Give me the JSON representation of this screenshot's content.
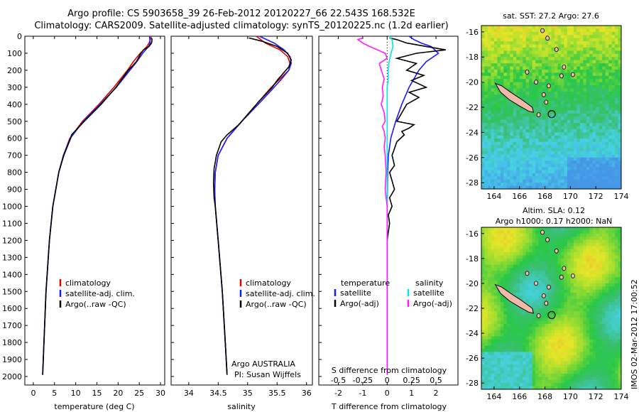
{
  "header": {
    "title_line1": "Argo profile: CS 5903658_39 26-Feb-2012 20120227_66 22.543S 168.532E",
    "title_line2": "Climatology: CARS2009. Satellite-adjusted climatology: synTS_20120225.nc (1.2d earlier)"
  },
  "footer_stamp": "IMOS 02-Mar-2012 17:00:52",
  "chart_data": [
    {
      "type": "line",
      "xlabel": "temperature (deg C)",
      "xlim": [
        -2,
        31
      ],
      "xticks": [
        "0",
        "5",
        "10",
        "15",
        "20",
        "25",
        "30"
      ],
      "ylim": [
        0,
        2050
      ],
      "yticks": [
        "0",
        "100",
        "200",
        "300",
        "400",
        "500",
        "600",
        "700",
        "800",
        "900",
        "1000",
        "1100",
        "1200",
        "1300",
        "1400",
        "1500",
        "1600",
        "1700",
        "1800",
        "1900",
        "2000"
      ],
      "legend": [
        {
          "label": "climatology",
          "color": "#e00000"
        },
        {
          "label": "satellite-adj. clim.",
          "color": "#1a1aff"
        },
        {
          "label": "Argo(..raw -QC)",
          "color": "#000000"
        }
      ],
      "series": [
        {
          "name": "climatology",
          "color": "#e00000",
          "depth": [
            0,
            20,
            40,
            60,
            100,
            150,
            200,
            300,
            400,
            500,
            600,
            700,
            800,
            1000,
            1200,
            1500,
            1800,
            1990
          ],
          "values": [
            27.8,
            27.6,
            27.3,
            26.8,
            25.2,
            23.6,
            22.2,
            19.0,
            15.5,
            11.6,
            8.6,
            7.1,
            6.0,
            4.6,
            3.8,
            3.0,
            2.5,
            2.2
          ]
        },
        {
          "name": "satellite-adj. clim.",
          "color": "#1a1aff",
          "depth": [
            0,
            20,
            40,
            60,
            100,
            150,
            200,
            300,
            400,
            500,
            600,
            700,
            800,
            1000,
            1200,
            1500,
            1800,
            1990
          ],
          "values": [
            27.4,
            27.5,
            27.6,
            27.2,
            25.8,
            24.4,
            22.8,
            19.6,
            15.8,
            11.8,
            8.7,
            7.1,
            6.0,
            4.6,
            3.8,
            3.0,
            2.5,
            2.2
          ]
        },
        {
          "name": "Argo",
          "color": "#000000",
          "depth": [
            10,
            20,
            40,
            60,
            80,
            100,
            150,
            200,
            300,
            400,
            500,
            580,
            600,
            700,
            800,
            1000,
            1200,
            1500,
            1800,
            1990
          ],
          "values": [
            27.9,
            28.0,
            27.9,
            27.3,
            26.0,
            25.4,
            24.3,
            22.4,
            19.5,
            16.0,
            12.0,
            9.0,
            8.8,
            7.2,
            6.0,
            4.6,
            3.8,
            3.0,
            2.5,
            2.2
          ]
        }
      ]
    },
    {
      "type": "line",
      "xlabel": "salinity",
      "xlim": [
        33.7,
        36.1
      ],
      "xticks": [
        "34",
        "34.5",
        "35",
        "35.5",
        "36"
      ],
      "ylim": [
        0,
        2050
      ],
      "legend": [
        {
          "label": "climatology",
          "color": "#e00000"
        },
        {
          "label": "satellite-adj. clim.",
          "color": "#1a1aff"
        },
        {
          "label": "Argo(..raw -QC)",
          "color": "#000000"
        }
      ],
      "annotation_line1": "Argo AUSTRALIA",
      "annotation_line2": "PI: Susan Wijffels",
      "series": [
        {
          "name": "climatology",
          "color": "#e00000",
          "depth": [
            0,
            40,
            80,
            120,
            160,
            200,
            250,
            300,
            400,
            500,
            600,
            700,
            800,
            900,
            1000,
            1200,
            1500,
            1800,
            1990
          ],
          "values": [
            35.15,
            35.3,
            35.55,
            35.68,
            35.72,
            35.7,
            35.55,
            35.4,
            35.15,
            34.9,
            34.65,
            34.5,
            34.45,
            34.44,
            34.45,
            34.5,
            34.57,
            34.62,
            34.65
          ]
        },
        {
          "name": "satellite-adj. clim.",
          "color": "#1a1aff",
          "depth": [
            0,
            40,
            80,
            120,
            160,
            200,
            250,
            300,
            400,
            500,
            600,
            700,
            800,
            900,
            1000,
            1200,
            1500,
            1800,
            1990
          ],
          "values": [
            35.2,
            35.45,
            35.62,
            35.72,
            35.74,
            35.7,
            35.58,
            35.45,
            35.18,
            34.9,
            34.65,
            34.5,
            34.45,
            34.44,
            34.45,
            34.5,
            34.57,
            34.62,
            34.65
          ]
        },
        {
          "name": "Argo",
          "color": "#000000",
          "depth": [
            10,
            30,
            60,
            100,
            140,
            180,
            220,
            260,
            300,
            380,
            460,
            520,
            580,
            620,
            700,
            780,
            860,
            950,
            1000,
            1200,
            1500,
            1800,
            1990
          ],
          "values": [
            35.02,
            35.25,
            35.5,
            35.68,
            35.74,
            35.7,
            35.6,
            35.5,
            35.42,
            35.2,
            35.0,
            34.85,
            34.65,
            34.55,
            34.47,
            34.43,
            34.42,
            34.43,
            34.45,
            34.5,
            34.57,
            34.62,
            34.65
          ]
        }
      ]
    },
    {
      "type": "line",
      "xlabel": "T difference from climatology",
      "xlabel_top": "S difference from climatology",
      "xlim": [
        -2.8,
        2.9
      ],
      "xticks": [
        "-2",
        "-1",
        "0",
        "1",
        "2"
      ],
      "xticks_top": [
        "-0.5",
        "-0.25",
        "0",
        "0.25",
        "0.5"
      ],
      "ylim": [
        0,
        2050
      ],
      "legend_left_title": "temperature",
      "legend_right_title": "salinity",
      "legend": [
        {
          "label": "satellite",
          "color": "#1a1aff"
        },
        {
          "label": "Argo(-adj)",
          "color": "#000000"
        },
        {
          "label": "satellite",
          "color": "#00e5e5"
        },
        {
          "label": "Argo(-adj)",
          "color": "#ff1aff"
        }
      ],
      "series": [
        {
          "name": "T satellite",
          "color": "#1a1aff",
          "depth": [
            0,
            20,
            40,
            60,
            100,
            150,
            200,
            300,
            400,
            500,
            600,
            700,
            800,
            900,
            1000,
            1200,
            1500,
            1800,
            1990
          ],
          "values": [
            0.9,
            1.1,
            1.4,
            1.8,
            2.1,
            1.6,
            1.3,
            0.9,
            0.6,
            0.35,
            0.15,
            0.05,
            0.02,
            0.01,
            0.0,
            0.0,
            0.0,
            0.0,
            0.0
          ]
        },
        {
          "name": "T Argo",
          "color": "#000000",
          "depth": [
            10,
            20,
            40,
            60,
            80,
            100,
            130,
            160,
            200,
            230,
            260,
            300,
            330,
            360,
            400,
            450,
            500,
            520,
            540,
            560,
            580,
            620,
            660,
            700,
            760,
            800,
            850,
            900,
            950,
            1000,
            1050,
            1100,
            1200,
            1500,
            1990
          ],
          "values": [
            0.1,
            0.4,
            0.8,
            1.6,
            2.4,
            1.2,
            0.4,
            1.2,
            0.8,
            1.5,
            1.0,
            1.6,
            0.9,
            1.3,
            0.8,
            0.6,
            0.4,
            1.1,
            0.9,
            0.6,
            0.7,
            0.4,
            0.3,
            0.2,
            0.3,
            0.1,
            0.2,
            0.3,
            0.1,
            0.2,
            0.05,
            0.1,
            0.0,
            0.0,
            0.0
          ]
        },
        {
          "name": "S satellite",
          "color": "#00e5e5",
          "depth": [
            0,
            20,
            60,
            100,
            150,
            200,
            250,
            300,
            400,
            500,
            700,
            900,
            1200,
            1500,
            1990
          ],
          "values": [
            0.02,
            0.05,
            0.06,
            0.04,
            0.02,
            0.01,
            0.01,
            0.0,
            0.0,
            0.0,
            0.0,
            0.0,
            0.0,
            0.0,
            0.0
          ]
        },
        {
          "name": "S Argo",
          "color": "#ff1aff",
          "depth": [
            10,
            20,
            40,
            60,
            80,
            100,
            130,
            160,
            200,
            250,
            300,
            350,
            400,
            450,
            500,
            530,
            560,
            600,
            650,
            700,
            800,
            900,
            1000,
            1200,
            1500,
            1990
          ],
          "values": [
            -0.25,
            -0.3,
            -0.25,
            -0.18,
            -0.1,
            -0.02,
            0.0,
            -0.08,
            -0.06,
            -0.03,
            -0.05,
            -0.04,
            -0.06,
            -0.03,
            -0.02,
            -0.05,
            -0.03,
            -0.02,
            -0.03,
            -0.02,
            -0.01,
            -0.02,
            0.0,
            0.0,
            0.0,
            0.0
          ]
        }
      ]
    },
    {
      "type": "heatmap",
      "title": "sat. SST: 27.2  Argo: 27.6",
      "xticks": [
        "164",
        "166",
        "168",
        "170",
        "172",
        "174"
      ],
      "yticks": [
        "-16",
        "-18",
        "-20",
        "-22",
        "-24",
        "-26",
        "-28"
      ],
      "lon_range": [
        163,
        174
      ],
      "lat_range": [
        -28.5,
        -15.5
      ],
      "float_position": [
        168.53,
        -22.54
      ]
    },
    {
      "type": "heatmap",
      "title_line1": "Altim. SLA: 0.12",
      "title_line2": "Argo h1000: 0.17 h2000: NaN",
      "xticks": [
        "164",
        "166",
        "168",
        "170",
        "172",
        "174"
      ],
      "yticks": [
        "-16",
        "-18",
        "-20",
        "-22",
        "-24",
        "-26",
        "-28"
      ],
      "lon_range": [
        163,
        174
      ],
      "lat_range": [
        -28.5,
        -15.5
      ],
      "float_position": [
        168.53,
        -22.54
      ]
    }
  ]
}
